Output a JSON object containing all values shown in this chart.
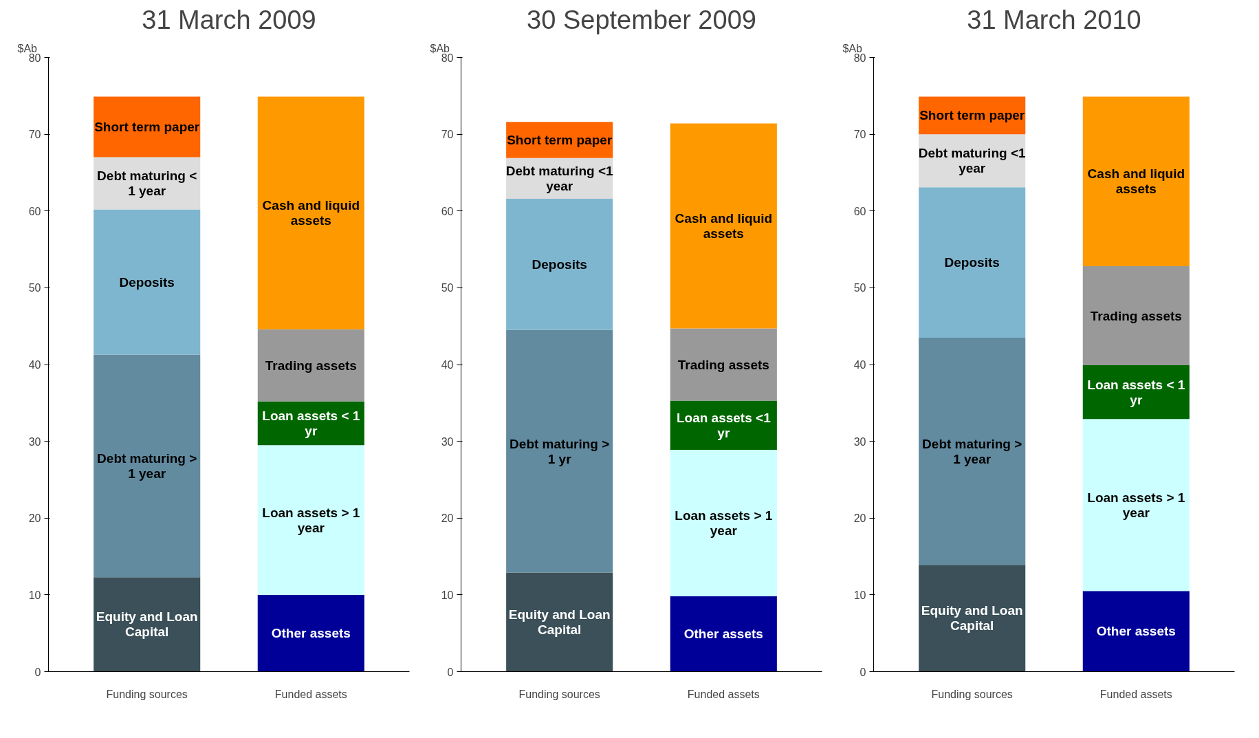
{
  "chart_data": [
    {
      "type": "bar",
      "title": "31 March 2009",
      "ylabel": "$Ab",
      "categories": [
        "Funding sources",
        "Funded assets"
      ],
      "stacked": true,
      "ylim": [
        0,
        80
      ],
      "yticks": [
        0,
        10,
        20,
        30,
        40,
        50,
        60,
        70,
        80
      ],
      "grid": false,
      "series": [
        {
          "name": "Equity and Loan Capital",
          "color": "#3b5058",
          "values": [
            12.3,
            null
          ]
        },
        {
          "name": "Debt maturing > 1 year",
          "color": "#628ba0",
          "values": [
            29.0,
            null
          ]
        },
        {
          "name": "Deposits",
          "color": "#7fb6cf",
          "values": [
            18.9,
            null
          ]
        },
        {
          "name": "Debt maturing < 1 year",
          "color": "#dddddd",
          "values": [
            6.8,
            null
          ]
        },
        {
          "name": "Short term paper",
          "color": "#ff6600",
          "values": [
            7.9,
            null
          ]
        },
        {
          "name": "Other assets",
          "color": "#000099",
          "values": [
            null,
            10.0
          ]
        },
        {
          "name": "Loan assets > 1 year",
          "color": "#ccffff",
          "values": [
            null,
            19.5
          ]
        },
        {
          "name": "Loan assets < 1 yr",
          "color": "#006600",
          "values": [
            null,
            5.7
          ]
        },
        {
          "name": "Trading assets",
          "color": "#999999",
          "values": [
            null,
            9.4
          ]
        },
        {
          "name": "Cash and liquid assets",
          "color": "#ff9900",
          "values": [
            null,
            30.3
          ]
        }
      ]
    },
    {
      "type": "bar",
      "title": "30 September 2009",
      "ylabel": "$Ab",
      "categories": [
        "Funding sources",
        "Funded assets"
      ],
      "stacked": true,
      "ylim": [
        0,
        80
      ],
      "yticks": [
        0,
        10,
        20,
        30,
        40,
        50,
        60,
        70,
        80
      ],
      "grid": false,
      "series": [
        {
          "name": "Equity and Loan Capital",
          "color": "#3b5058",
          "values": [
            12.9,
            null
          ]
        },
        {
          "name": "Debt maturing > 1 yr",
          "color": "#628ba0",
          "values": [
            31.6,
            null
          ]
        },
        {
          "name": "Deposits",
          "color": "#7fb6cf",
          "values": [
            17.1,
            null
          ]
        },
        {
          "name": "Debt maturing <1 year",
          "color": "#dddddd",
          "values": [
            5.3,
            null
          ]
        },
        {
          "name": "Short term paper",
          "color": "#ff6600",
          "values": [
            4.7,
            null
          ]
        },
        {
          "name": "Other assets",
          "color": "#000099",
          "values": [
            null,
            9.8
          ]
        },
        {
          "name": "Loan assets > 1 year",
          "color": "#ccffff",
          "values": [
            null,
            19.1
          ]
        },
        {
          "name": "Loan assets <1 yr",
          "color": "#006600",
          "values": [
            null,
            6.4
          ]
        },
        {
          "name": "Trading assets",
          "color": "#999999",
          "values": [
            null,
            9.4
          ]
        },
        {
          "name": "Cash and liquid assets",
          "color": "#ff9900",
          "values": [
            null,
            26.7
          ]
        }
      ]
    },
    {
      "type": "bar",
      "title": "31 March 2010",
      "ylabel": "$Ab",
      "categories": [
        "Funding sources",
        "Funded assets"
      ],
      "stacked": true,
      "ylim": [
        0,
        80
      ],
      "yticks": [
        0,
        10,
        20,
        30,
        40,
        50,
        60,
        70,
        80
      ],
      "grid": false,
      "series": [
        {
          "name": "Equity and Loan Capital",
          "color": "#3b5058",
          "values": [
            13.9,
            null
          ]
        },
        {
          "name": "Debt maturing > 1 year",
          "color": "#628ba0",
          "values": [
            29.6,
            null
          ]
        },
        {
          "name": "Deposits",
          "color": "#7fb6cf",
          "values": [
            19.6,
            null
          ]
        },
        {
          "name": "Debt maturing <1 year",
          "color": "#dddddd",
          "values": [
            6.9,
            null
          ]
        },
        {
          "name": "Short term paper",
          "color": "#ff6600",
          "values": [
            4.9,
            null
          ]
        },
        {
          "name": "Other assets",
          "color": "#000099",
          "values": [
            null,
            10.5
          ]
        },
        {
          "name": "Loan assets > 1 year",
          "color": "#ccffff",
          "values": [
            null,
            22.4
          ]
        },
        {
          "name": "Loan assets < 1 yr",
          "color": "#006600",
          "values": [
            null,
            7.0
          ]
        },
        {
          "name": "Trading assets",
          "color": "#999999",
          "values": [
            null,
            12.9
          ]
        },
        {
          "name": "Cash and liquid assets",
          "color": "#ff9900",
          "values": [
            null,
            22.1
          ]
        }
      ]
    }
  ]
}
